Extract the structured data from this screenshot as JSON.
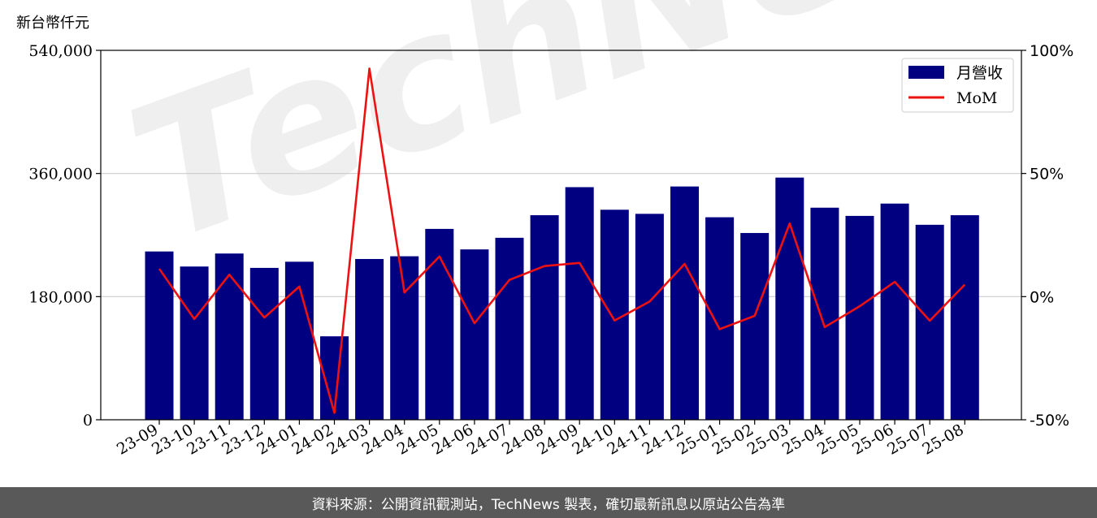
{
  "unit_label": "新台幣仟元",
  "footer_text": "資料來源：公開資訊觀測站，TechNews 製表，確切最新訊息以原站公告為準",
  "watermark_text": "TechNews",
  "colors": {
    "bar": "#000080",
    "line": "#ee1111",
    "grid": "#cccccc",
    "footer_bg": "#595959"
  },
  "chart_data": {
    "type": "bar",
    "categories": [
      "23-09",
      "23-10",
      "23-11",
      "23-12",
      "24-01",
      "24-02",
      "24-03",
      "24-04",
      "24-05",
      "24-06",
      "24-07",
      "24-08",
      "24-09",
      "24-10",
      "24-11",
      "24-12",
      "25-01",
      "25-02",
      "25-03",
      "25-04",
      "25-05",
      "25-06",
      "25-07",
      "25-08"
    ],
    "series": [
      {
        "name": "月營收",
        "type": "bar",
        "axis": "left",
        "values": [
          246000,
          224000,
          243000,
          222000,
          231000,
          122000,
          235000,
          239000,
          279000,
          249000,
          266000,
          299000,
          340000,
          307000,
          301000,
          341000,
          296000,
          273000,
          354000,
          310000,
          298000,
          316000,
          285000,
          299000
        ]
      },
      {
        "name": "MoM",
        "type": "line",
        "axis": "right",
        "values": [
          11.3,
          -9.1,
          8.9,
          -8.5,
          4.1,
          -47.2,
          92.6,
          1.7,
          16.3,
          -10.8,
          6.8,
          12.4,
          13.7,
          -9.7,
          -2.0,
          13.3,
          -13.2,
          -7.8,
          29.7,
          -12.4,
          -3.9,
          6.0,
          -9.8,
          4.9
        ]
      }
    ],
    "y_left": {
      "ylim": [
        0,
        540000
      ],
      "ticks": [
        "0",
        "180,000",
        "360,000",
        "540,000"
      ],
      "tick_values": [
        0,
        180000,
        360000,
        540000
      ]
    },
    "y_right": {
      "ylim": [
        -50,
        100
      ],
      "ticks": [
        "-50%",
        "0%",
        "50%",
        "100%"
      ],
      "tick_values": [
        -50,
        0,
        50,
        100
      ]
    },
    "grid": "horizontal",
    "legend_position": "top-right"
  }
}
